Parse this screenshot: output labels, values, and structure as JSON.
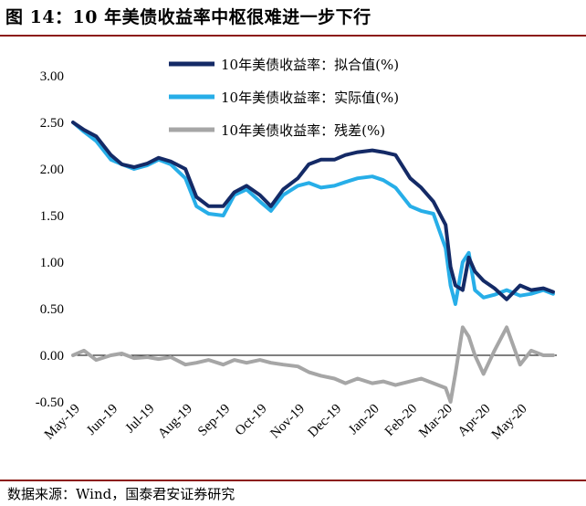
{
  "figure_title": "图 14：10 年美债收益率中枢很难进一步下行",
  "source_note": "数据来源：Wind，国泰君安证券研究",
  "chart_data": {
    "type": "line",
    "title": "",
    "xlabel": "",
    "ylabel": "",
    "ylim": [
      -0.5,
      3.0
    ],
    "yticks": [
      "3.00",
      "2.50",
      "2.00",
      "1.50",
      "1.00",
      "0.50",
      "0.00",
      "-0.50"
    ],
    "xticks": [
      "May-19",
      "Jun-19",
      "Jul-19",
      "Aug-19",
      "Sep-19",
      "Oct-19",
      "Nov-19",
      "Dec-19",
      "Jan-20",
      "Feb-20",
      "Mar-20",
      "Apr-20",
      "May-20"
    ],
    "x_range": [
      "2019-05-01",
      "2020-05-31"
    ],
    "grid": false,
    "legend_position": "top-center",
    "series": [
      {
        "name": "10年美债收益率：拟合值(%)",
        "color": "#142a66",
        "x": [
          "2019-05-01",
          "2019-05-10",
          "2019-05-20",
          "2019-06-01",
          "2019-06-10",
          "2019-06-20",
          "2019-07-01",
          "2019-07-10",
          "2019-07-20",
          "2019-08-01",
          "2019-08-10",
          "2019-08-20",
          "2019-09-01",
          "2019-09-10",
          "2019-09-20",
          "2019-10-01",
          "2019-10-10",
          "2019-10-20",
          "2019-11-01",
          "2019-11-10",
          "2019-11-20",
          "2019-12-01",
          "2019-12-10",
          "2019-12-20",
          "2020-01-01",
          "2020-01-10",
          "2020-01-20",
          "2020-02-01",
          "2020-02-10",
          "2020-02-20",
          "2020-03-01",
          "2020-03-05",
          "2020-03-09",
          "2020-03-15",
          "2020-03-20",
          "2020-03-25",
          "2020-04-01",
          "2020-04-10",
          "2020-04-20",
          "2020-05-01",
          "2020-05-10",
          "2020-05-20",
          "2020-05-28"
        ],
        "values": [
          2.5,
          2.42,
          2.35,
          2.15,
          2.05,
          2.02,
          2.06,
          2.12,
          2.08,
          2.0,
          1.7,
          1.6,
          1.6,
          1.75,
          1.82,
          1.72,
          1.6,
          1.78,
          1.9,
          2.05,
          2.1,
          2.1,
          2.15,
          2.18,
          2.2,
          2.18,
          2.15,
          1.9,
          1.8,
          1.65,
          1.4,
          0.95,
          0.75,
          0.7,
          1.05,
          0.9,
          0.8,
          0.72,
          0.6,
          0.75,
          0.7,
          0.72,
          0.68
        ]
      },
      {
        "name": "10年美债收益率：实际值(%)",
        "color": "#27aee8",
        "x": [
          "2019-05-01",
          "2019-05-10",
          "2019-05-20",
          "2019-06-01",
          "2019-06-10",
          "2019-06-20",
          "2019-07-01",
          "2019-07-10",
          "2019-07-20",
          "2019-08-01",
          "2019-08-10",
          "2019-08-20",
          "2019-09-01",
          "2019-09-10",
          "2019-09-20",
          "2019-10-01",
          "2019-10-10",
          "2019-10-20",
          "2019-11-01",
          "2019-11-10",
          "2019-11-20",
          "2019-12-01",
          "2019-12-10",
          "2019-12-20",
          "2020-01-01",
          "2020-01-10",
          "2020-01-20",
          "2020-02-01",
          "2020-02-10",
          "2020-02-20",
          "2020-03-01",
          "2020-03-05",
          "2020-03-09",
          "2020-03-15",
          "2020-03-20",
          "2020-03-25",
          "2020-04-01",
          "2020-04-10",
          "2020-04-20",
          "2020-05-01",
          "2020-05-10",
          "2020-05-20",
          "2020-05-28"
        ],
        "values": [
          2.5,
          2.4,
          2.3,
          2.1,
          2.05,
          2.0,
          2.04,
          2.1,
          2.05,
          1.9,
          1.6,
          1.52,
          1.5,
          1.72,
          1.78,
          1.65,
          1.55,
          1.72,
          1.82,
          1.85,
          1.8,
          1.82,
          1.86,
          1.9,
          1.92,
          1.88,
          1.8,
          1.6,
          1.55,
          1.52,
          1.15,
          0.75,
          0.55,
          1.0,
          1.1,
          0.7,
          0.62,
          0.65,
          0.7,
          0.64,
          0.66,
          0.7,
          0.66
        ]
      },
      {
        "name": "10年美债收益率：残差(%)",
        "color": "#a6a6a6",
        "x": [
          "2019-05-01",
          "2019-05-10",
          "2019-05-20",
          "2019-06-01",
          "2019-06-10",
          "2019-06-20",
          "2019-07-01",
          "2019-07-10",
          "2019-07-20",
          "2019-08-01",
          "2019-08-10",
          "2019-08-20",
          "2019-09-01",
          "2019-09-10",
          "2019-09-20",
          "2019-10-01",
          "2019-10-10",
          "2019-10-20",
          "2019-11-01",
          "2019-11-10",
          "2019-11-20",
          "2019-12-01",
          "2019-12-10",
          "2019-12-20",
          "2020-01-01",
          "2020-01-10",
          "2020-01-20",
          "2020-02-01",
          "2020-02-10",
          "2020-02-20",
          "2020-03-01",
          "2020-03-05",
          "2020-03-09",
          "2020-03-15",
          "2020-03-20",
          "2020-03-25",
          "2020-04-01",
          "2020-04-10",
          "2020-04-20",
          "2020-05-01",
          "2020-05-10",
          "2020-05-20",
          "2020-05-28"
        ],
        "values": [
          0.0,
          0.05,
          -0.05,
          0.0,
          0.02,
          -0.03,
          -0.02,
          -0.04,
          -0.02,
          -0.1,
          -0.08,
          -0.05,
          -0.1,
          -0.05,
          -0.08,
          -0.05,
          -0.08,
          -0.1,
          -0.12,
          -0.18,
          -0.22,
          -0.25,
          -0.3,
          -0.25,
          -0.3,
          -0.28,
          -0.32,
          -0.28,
          -0.25,
          -0.3,
          -0.35,
          -0.5,
          -0.2,
          0.3,
          0.2,
          0.0,
          -0.2,
          0.05,
          0.3,
          -0.1,
          0.05,
          0.0,
          0.0
        ]
      }
    ]
  }
}
